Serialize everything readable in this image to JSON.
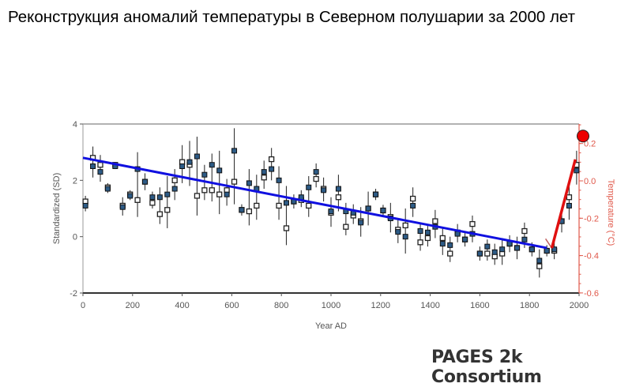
{
  "title": "Реконструкция аномалий температуры в Северном полушарии за 2000 лет",
  "credit": "PAGES 2k Consortium",
  "chart_data": {
    "type": "scatter",
    "title": "Реконструкция аномалий температуры в Северном полушарии за 2000 лет",
    "xlabel": "Year AD",
    "ylabel": "Standardized (SD)",
    "y2label": "Temperature (°C)",
    "xlim": [
      0,
      2000
    ],
    "ylim": [
      -2,
      4
    ],
    "y2lim": [
      -0.6,
      0.3
    ],
    "xticks": [
      0,
      200,
      400,
      600,
      800,
      1000,
      1200,
      1400,
      1600,
      1800,
      2000
    ],
    "yticks": [
      -2,
      0,
      2,
      4
    ],
    "y2ticks": [
      "-0.6",
      "-0.4",
      "-0.2",
      "0.0",
      "0.2"
    ],
    "colors": {
      "filled": "#2d5b86",
      "trend": "#1010e0",
      "instrumental": "#e01010",
      "axis2": "#e0584a"
    },
    "series": [
      {
        "name": "filled markers (SD)",
        "x": [
          10,
          40,
          70,
          100,
          130,
          160,
          190,
          220,
          250,
          280,
          310,
          340,
          370,
          400,
          430,
          460,
          490,
          520,
          550,
          580,
          610,
          640,
          670,
          700,
          730,
          760,
          790,
          820,
          850,
          880,
          910,
          940,
          970,
          1000,
          1030,
          1060,
          1090,
          1120,
          1150,
          1180,
          1210,
          1240,
          1270,
          1300,
          1330,
          1360,
          1390,
          1420,
          1450,
          1480,
          1510,
          1540,
          1570,
          1600,
          1630,
          1660,
          1690,
          1720,
          1750,
          1780,
          1810,
          1840,
          1870,
          1900,
          1930,
          1960,
          1990
        ],
        "y": [
          1.1,
          2.5,
          2.3,
          1.7,
          2.5,
          1.05,
          1.45,
          2.4,
          1.95,
          1.4,
          1.4,
          1.5,
          1.7,
          2.5,
          2.65,
          2.85,
          2.2,
          2.55,
          2.35,
          1.5,
          3.05,
          0.95,
          1.9,
          1.7,
          2.3,
          2.4,
          2.0,
          1.2,
          1.25,
          1.4,
          1.75,
          2.3,
          1.65,
          0.9,
          1.7,
          0.9,
          0.85,
          0.5,
          1.0,
          1.5,
          0.93,
          0.65,
          0.17,
          0.0,
          1.1,
          0.2,
          0.15,
          0.35,
          -0.25,
          -0.3,
          0.1,
          -0.1,
          0.1,
          -0.6,
          -0.35,
          -0.55,
          -0.45,
          -0.25,
          -0.4,
          -0.1,
          -0.45,
          -0.85,
          -0.5,
          -0.45,
          0.55,
          1.1,
          2.35
        ]
      },
      {
        "name": "open markers (SD)",
        "x": [
          10,
          40,
          70,
          100,
          130,
          160,
          190,
          220,
          250,
          280,
          310,
          340,
          370,
          400,
          430,
          460,
          490,
          520,
          550,
          580,
          610,
          640,
          670,
          700,
          730,
          760,
          790,
          820,
          850,
          880,
          910,
          940,
          970,
          1000,
          1030,
          1060,
          1090,
          1120,
          1150,
          1180,
          1210,
          1240,
          1270,
          1300,
          1330,
          1360,
          1390,
          1420,
          1450,
          1480,
          1510,
          1540,
          1570,
          1600,
          1630,
          1660,
          1690,
          1720,
          1750,
          1780,
          1810,
          1840,
          1870,
          1900,
          1930,
          1960,
          1990
        ],
        "y": [
          1.25,
          2.8,
          2.55,
          1.75,
          2.55,
          1.1,
          1.5,
          1.3,
          1.95,
          1.2,
          0.8,
          0.95,
          2.0,
          2.65,
          2.55,
          1.45,
          1.65,
          1.65,
          1.5,
          1.65,
          1.95,
          0.95,
          0.9,
          1.1,
          2.1,
          2.75,
          1.1,
          0.3,
          1.25,
          1.3,
          1.1,
          2.05,
          1.7,
          0.85,
          1.4,
          0.35,
          0.75,
          0.55,
          1.0,
          1.5,
          0.93,
          0.7,
          0.25,
          0.4,
          1.35,
          -0.2,
          -0.05,
          0.55,
          -0.05,
          -0.6,
          0.15,
          -0.1,
          0.45,
          -0.6,
          -0.6,
          -0.7,
          -0.6,
          -0.25,
          -0.4,
          0.2,
          -0.45,
          -1.05,
          -0.5,
          -0.5,
          0.55,
          1.4,
          2.55
        ]
      },
      {
        "name": "error half-width (SD)",
        "err": [
          0.2,
          0.4,
          0.35,
          0.15,
          0.1,
          0.3,
          0.15,
          0.6,
          0.3,
          0.2,
          0.35,
          0.65,
          0.4,
          0.6,
          0.75,
          0.7,
          0.35,
          0.4,
          0.7,
          0.4,
          0.8,
          0.2,
          0.5,
          0.5,
          0.4,
          0.4,
          0.5,
          0.6,
          0.25,
          0.25,
          0.4,
          0.3,
          0.4,
          0.5,
          0.5,
          0.3,
          0.3,
          0.5,
          0.6,
          0.2,
          0.2,
          0.5,
          0.4,
          0.6,
          0.4,
          0.3,
          0.3,
          0.4,
          0.4,
          0.3,
          0.3,
          0.25,
          0.3,
          0.25,
          0.25,
          0.3,
          0.4,
          0.3,
          0.4,
          0.3,
          0.25,
          0.4,
          0.2,
          0.3,
          0.4,
          0.5,
          0.5
        ]
      },
      {
        "name": "linear trend (SD)",
        "x": [
          0,
          1870
        ],
        "y": [
          2.8,
          -0.4
        ]
      },
      {
        "name": "instrumental temperature (°C)",
        "x": [
          1865,
          1890,
          1985
        ],
        "y": [
          -0.31,
          -0.36,
          0.115
        ]
      },
      {
        "name": "recent temperature point (°C)",
        "x": [
          2000
        ],
        "y": [
          0.24
        ]
      }
    ]
  }
}
